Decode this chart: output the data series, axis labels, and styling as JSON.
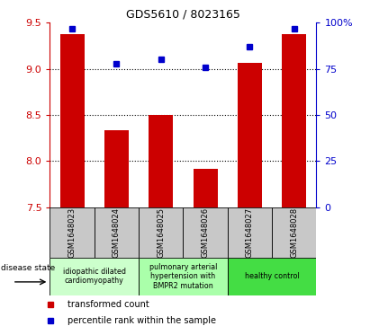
{
  "title": "GDS5610 / 8023165",
  "samples": [
    "GSM1648023",
    "GSM1648024",
    "GSM1648025",
    "GSM1648026",
    "GSM1648027",
    "GSM1648028"
  ],
  "red_values": [
    9.38,
    8.33,
    8.5,
    7.91,
    9.07,
    9.38
  ],
  "blue_values": [
    97,
    78,
    80,
    76,
    87,
    97
  ],
  "ylim_left": [
    7.5,
    9.5
  ],
  "ylim_right": [
    0,
    100
  ],
  "yticks_left": [
    7.5,
    8.0,
    8.5,
    9.0,
    9.5
  ],
  "yticks_right": [
    0,
    25,
    50,
    75,
    100
  ],
  "ytick_labels_right": [
    "0",
    "25",
    "50",
    "75",
    "100%"
  ],
  "gridlines_at": [
    8.0,
    8.5,
    9.0
  ],
  "bar_color": "#cc0000",
  "dot_color": "#0000cc",
  "tick_color_left": "#cc0000",
  "tick_color_right": "#0000cc",
  "bg_color_sample": "#c8c8c8",
  "group_boundaries": [
    [
      0,
      1,
      "#ccffcc",
      "idiopathic dilated\ncardiomyopathy"
    ],
    [
      2,
      3,
      "#aaffaa",
      "pulmonary arterial\nhypertension with\nBMPR2 mutation"
    ],
    [
      4,
      5,
      "#44dd44",
      "healthy control"
    ]
  ],
  "legend_red": "transformed count",
  "legend_blue": "percentile rank within the sample",
  "disease_state_label": "disease state",
  "bar_width": 0.55
}
